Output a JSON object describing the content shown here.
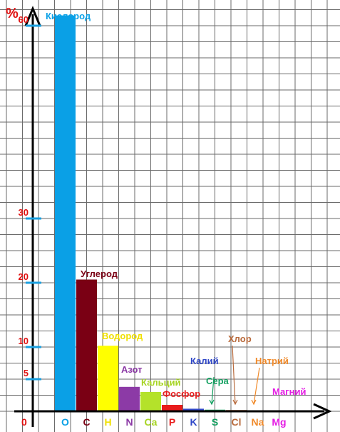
{
  "chart_data": {
    "type": "bar",
    "y_axis_label": "%",
    "origin_label": "0",
    "y_ticks": [
      {
        "value": 5,
        "label": "5"
      },
      {
        "value": 10,
        "label": "10"
      },
      {
        "value": 20,
        "label": "20"
      },
      {
        "value": 30,
        "label": "30"
      },
      {
        "value": 60,
        "label": "60"
      }
    ],
    "ylim": [
      0,
      64
    ],
    "grid": true,
    "bars": [
      {
        "symbol": "O",
        "name": "Кислород",
        "value": 61.6,
        "color": "#0aa0e6",
        "symbol_color": "#0aa0e6",
        "name_color": "#0aa0e6"
      },
      {
        "symbol": "C",
        "name": "Углерод",
        "value": 20.5,
        "color": "#7a0014",
        "symbol_color": "#7a0014",
        "name_color": "#7a0014"
      },
      {
        "symbol": "H",
        "name": "Водород",
        "value": 10.2,
        "color": "#ffff00",
        "symbol_color": "#f0e000",
        "name_color": "#f0e000"
      },
      {
        "symbol": "N",
        "name": "Азот",
        "value": 3.8,
        "color": "#8c3aa6",
        "symbol_color": "#8c3aa6",
        "name_color": "#8c3aa6"
      },
      {
        "symbol": "Ca",
        "name": "Кальций",
        "value": 3.0,
        "color": "#b4e22a",
        "symbol_color": "#a6d422",
        "name_color": "#a6d422"
      },
      {
        "symbol": "P",
        "name": "Фосфор",
        "value": 1.0,
        "color": "#e81c1c",
        "symbol_color": "#e81c1c",
        "name_color": "#e81c1c"
      },
      {
        "symbol": "K",
        "name": "Калий",
        "value": 0.4,
        "color": "#3048c8",
        "symbol_color": "#3048c8",
        "name_color": "#3048c8"
      },
      {
        "symbol": "S",
        "name": "Сера",
        "value": 0.25,
        "color": "#12a060",
        "symbol_color": "#12a060",
        "name_color": "#12a060"
      },
      {
        "symbol": "Cl",
        "name": "Хлор",
        "value": 0.2,
        "color": "#b86a3c",
        "symbol_color": "#b86a3c",
        "name_color": "#b86a3c"
      },
      {
        "symbol": "Na",
        "name": "Натрий",
        "value": 0.15,
        "color": "#f08a2a",
        "symbol_color": "#f08a2a",
        "name_color": "#f08a2a"
      },
      {
        "symbol": "Mg",
        "name": "Магний",
        "value": 0.1,
        "color": "#e41ee4",
        "symbol_color": "#e41ee4",
        "name_color": "#e41ee4"
      }
    ],
    "colors": {
      "axis": "#000000",
      "grid": "#6a6a6a",
      "tick_mark": "#1aa0e0",
      "tick_label": "#e01010"
    }
  }
}
